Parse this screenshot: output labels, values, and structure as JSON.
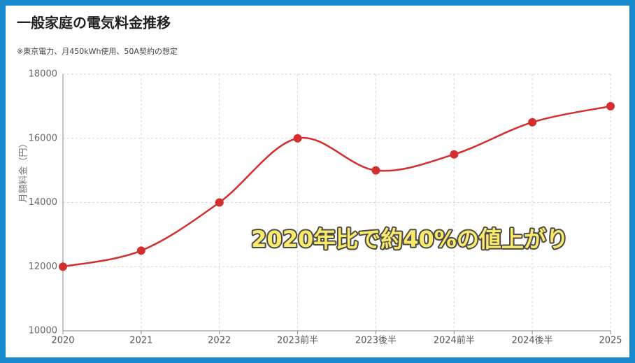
{
  "chart_data": {
    "type": "line",
    "title": "一般家庭の電気料金推移",
    "subtitle": "※東京電力、月450kWh使用、50A契約の想定",
    "y_label": "月額料金（円）",
    "categories": [
      "2020",
      "2021",
      "2022",
      "2023前半",
      "2023後半",
      "2024前半",
      "2024後半",
      "2025"
    ],
    "series": [
      {
        "name": "月額料金",
        "color": "#d32f2f",
        "values": [
          12000,
          12500,
          14000,
          16000,
          15000,
          15500,
          16500,
          17000
        ]
      }
    ],
    "ylim": [
      10000,
      18000
    ],
    "yticks": [
      10000,
      12000,
      14000,
      16000,
      18000
    ],
    "grid": true,
    "annotation": "2020年比で約40%の値上がり"
  }
}
